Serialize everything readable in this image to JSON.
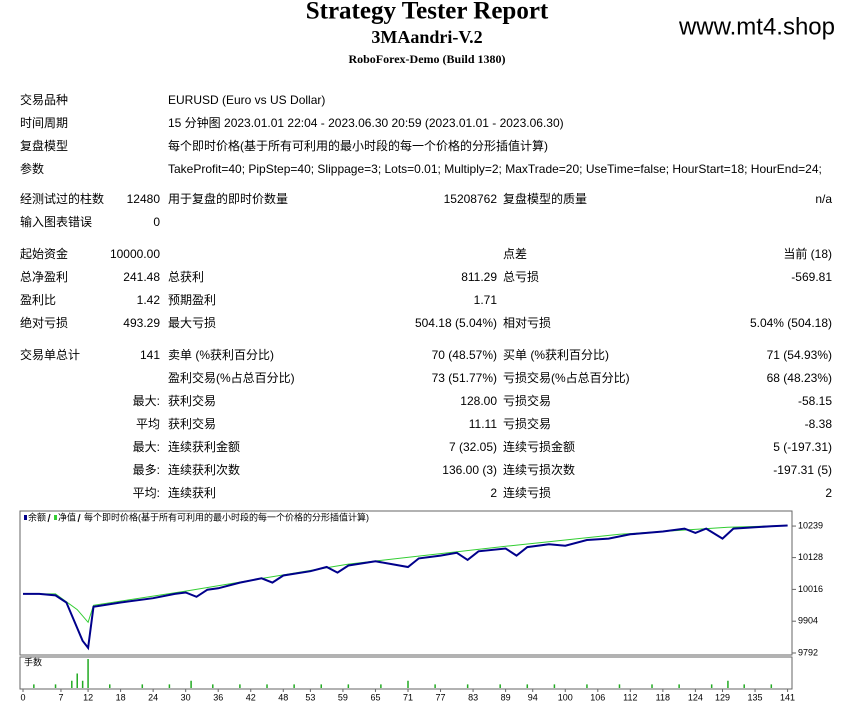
{
  "header": {
    "title": "Strategy Tester Report",
    "strategy": "3MAandri-V.2",
    "server": "RoboForex-Demo (Build 1380)",
    "watermark": "www.mt4.shop"
  },
  "info": [
    [
      "交易品种",
      "EURUSD (Euro vs US Dollar)"
    ],
    [
      "时间周期",
      "15 分钟图 2023.01.01 22:04 - 2023.06.30 20:59 (2023.01.01 - 2023.06.30)"
    ],
    [
      "复盘模型",
      "每个即时价格(基于所有可利用的最小时段的每一个价格的分形插值计算)"
    ],
    [
      "参数",
      "TakeProfit=40; PipStep=40; Slippage=3; Lots=0.01; Multiply=2; MaxTrade=20; UseTime=false; HourStart=18; HourEnd=24;"
    ]
  ],
  "stats": [
    [
      [
        "经测试过的柱数",
        "12480",
        "用于复盘的即时价数量",
        "15208762",
        "复盘模型的质量",
        "n/a"
      ],
      [
        "输入图表错误",
        "0",
        null,
        null,
        null,
        null
      ]
    ],
    [
      [
        "起始资金",
        "10000.00",
        null,
        null,
        "点差",
        "当前 (18)"
      ],
      [
        "总净盈利",
        "241.48",
        "总获利",
        "811.29",
        "总亏损",
        "-569.81"
      ],
      [
        "盈利比",
        "1.42",
        "预期盈利",
        "1.71",
        null,
        null
      ],
      [
        "绝对亏损",
        "493.29",
        "最大亏损",
        "504.18 (5.04%)",
        "相对亏损",
        "5.04% (504.18)"
      ]
    ],
    [
      [
        "交易单总计",
        "141",
        "卖单 (%获利百分比)",
        "70 (48.57%)",
        "买单 (%获利百分比)",
        "71 (54.93%)"
      ],
      [
        null,
        null,
        "盈利交易(%占总百分比)",
        "73 (51.77%)",
        "亏损交易(%占总百分比)",
        "68 (48.23%)"
      ],
      [
        null,
        "最大:",
        "获利交易",
        "128.00",
        "亏损交易",
        "-58.15"
      ],
      [
        null,
        "平均",
        "获利交易",
        "11.11",
        "亏损交易",
        "-8.38"
      ],
      [
        null,
        "最大:",
        "连续获利金额",
        "7 (32.05)",
        "连续亏损金额",
        "5 (-197.31)"
      ],
      [
        null,
        "最多:",
        "连续获利次数",
        "136.00 (3)",
        "连续亏损次数",
        "-197.31 (5)"
      ],
      [
        null,
        "平均:",
        "连续获利",
        "2",
        "连续亏损",
        "2"
      ]
    ]
  ],
  "chart_data": {
    "type": "line",
    "legend_note": "每个即时价格(基于所有可利用的最小时段的每一个价格的分形插值计算)",
    "lots_label": "手数",
    "xlim": [
      0,
      142
    ],
    "ylim": [
      9785,
      10285
    ],
    "xticks": [
      0,
      7,
      12,
      18,
      24,
      30,
      36,
      42,
      48,
      53,
      59,
      65,
      71,
      77,
      83,
      89,
      94,
      100,
      106,
      112,
      118,
      124,
      129,
      135,
      141
    ],
    "yticks": [
      10239,
      10128,
      10016,
      9904,
      9792
    ],
    "series": [
      {
        "name": "余额",
        "color": "#00008b",
        "x": [
          0,
          3,
          6,
          8,
          10,
          11,
          12,
          13,
          18,
          24,
          28,
          30,
          32,
          34,
          36,
          40,
          44,
          46,
          48,
          53,
          56,
          58,
          60,
          65,
          68,
          71,
          73,
          77,
          80,
          82,
          84,
          89,
          91,
          93,
          97,
          100,
          104,
          108,
          112,
          118,
          122,
          124,
          126,
          129,
          131,
          135,
          138,
          141
        ],
        "values": [
          10000,
          10000,
          9995,
          9970,
          9880,
          9835,
          9810,
          9955,
          9970,
          9985,
          10000,
          10005,
          9990,
          10015,
          10020,
          10040,
          10055,
          10040,
          10065,
          10080,
          10095,
          10075,
          10100,
          10115,
          10105,
          10095,
          10125,
          10135,
          10145,
          10120,
          10150,
          10160,
          10135,
          10165,
          10175,
          10170,
          10190,
          10195,
          10210,
          10220,
          10230,
          10215,
          10230,
          10195,
          10230,
          10235,
          10238,
          10241
        ]
      },
      {
        "name": "净值",
        "color": "#32cd32",
        "x": [
          0,
          6,
          10,
          12,
          13,
          30,
          60,
          90,
          110,
          130,
          141
        ],
        "values": [
          10000,
          10000,
          9945,
          9900,
          9960,
          10010,
          10105,
          10170,
          10210,
          10235,
          10241
        ]
      }
    ],
    "lots": {
      "color": "#22aa22",
      "ylim": [
        0,
        0.08
      ],
      "x": [
        2,
        6,
        9,
        10,
        11,
        12,
        16,
        22,
        27,
        31,
        35,
        40,
        45,
        50,
        55,
        60,
        66,
        71,
        76,
        82,
        88,
        93,
        98,
        104,
        110,
        116,
        121,
        127,
        130,
        133,
        138
      ],
      "values": [
        0.01,
        0.01,
        0.02,
        0.04,
        0.02,
        0.08,
        0.01,
        0.01,
        0.01,
        0.02,
        0.01,
        0.01,
        0.01,
        0.01,
        0.01,
        0.01,
        0.01,
        0.02,
        0.01,
        0.01,
        0.01,
        0.01,
        0.01,
        0.01,
        0.01,
        0.01,
        0.01,
        0.01,
        0.02,
        0.01,
        0.01
      ]
    }
  }
}
